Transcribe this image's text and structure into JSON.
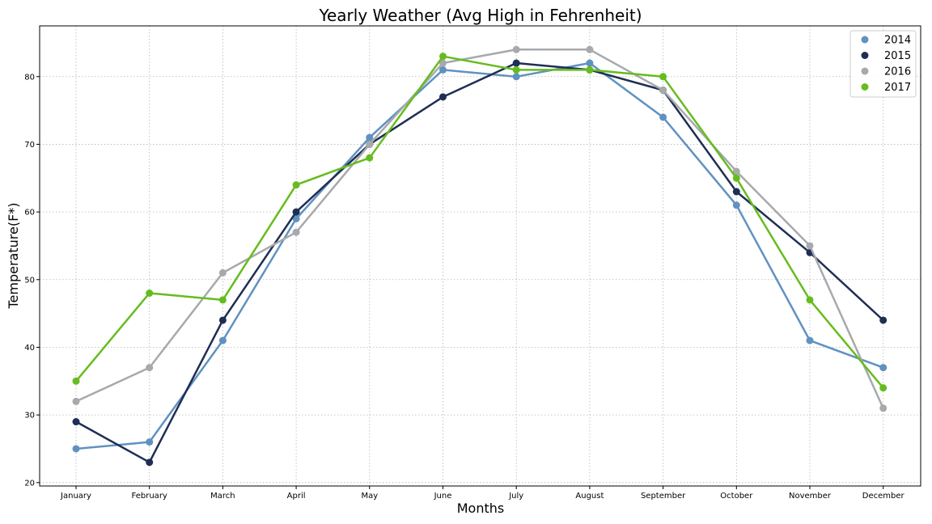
{
  "chart_data": {
    "type": "line",
    "title": "Yearly Weather (Avg High in Fehrenheit)",
    "xlabel": "Months",
    "ylabel": "Temperature(F*)",
    "categories": [
      "January",
      "February",
      "March",
      "April",
      "May",
      "June",
      "July",
      "August",
      "September",
      "October",
      "November",
      "December"
    ],
    "ylim": [
      19.5,
      87.5
    ],
    "yticks": [
      20,
      30,
      40,
      50,
      60,
      70,
      80
    ],
    "grid": true,
    "legend_position": "top-right",
    "series": [
      {
        "name": "2014",
        "color": "#6092c0",
        "values": [
          25,
          26,
          41,
          59,
          71,
          81,
          80,
          82,
          74,
          61,
          41,
          37
        ]
      },
      {
        "name": "2015",
        "color": "#1f2e54",
        "values": [
          29,
          23,
          44,
          60,
          70,
          77,
          82,
          81,
          78,
          63,
          54,
          44
        ]
      },
      {
        "name": "2016",
        "color": "#a7a9ac",
        "values": [
          32,
          37,
          51,
          57,
          70,
          82,
          84,
          84,
          78,
          66,
          55,
          31
        ]
      },
      {
        "name": "2017",
        "color": "#66bc1f",
        "values": [
          35,
          48,
          47,
          64,
          68,
          83,
          81,
          81,
          80,
          65,
          47,
          34
        ]
      }
    ]
  }
}
